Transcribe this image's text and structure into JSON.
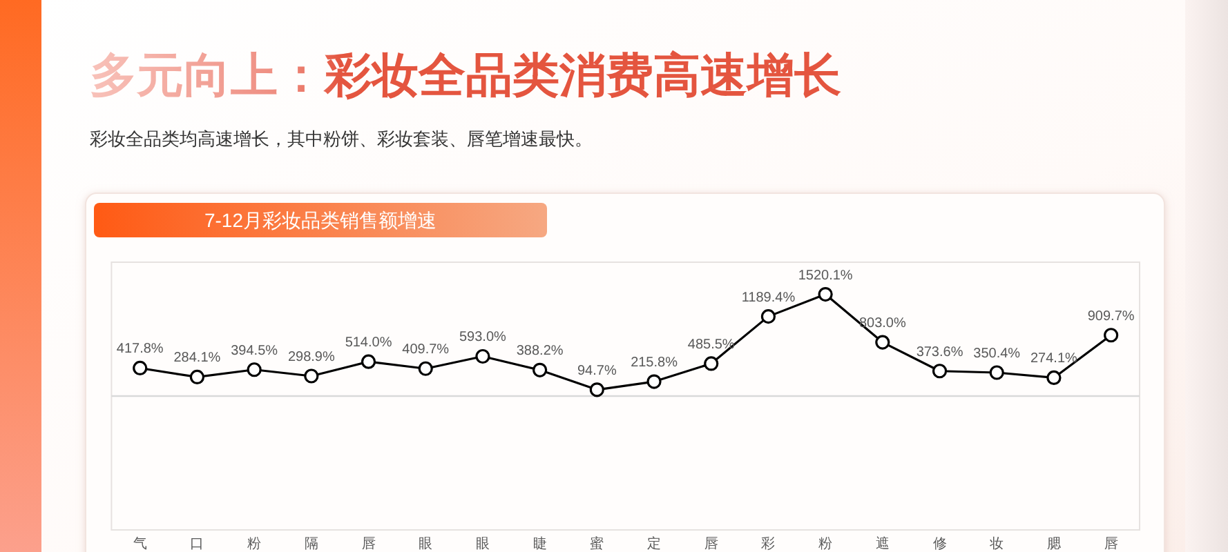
{
  "chart_data": {
    "type": "line",
    "title": "多元向上：彩妆全品类消费高速增长",
    "subtitle": "彩妆全品类均高速增长，其中粉饼、彩妆套装、唇笔增速最快。",
    "annotations": [
      "7-12月彩妆品类销售额增速"
    ],
    "categories": [
      "气",
      "口",
      "粉",
      "隔",
      "唇",
      "眼",
      "眼",
      "睫",
      "蜜",
      "定",
      "唇",
      "彩",
      "粉",
      "遮",
      "修",
      "妆",
      "腮",
      "唇"
    ],
    "series": [
      {
        "color": "#000000",
        "values": [
          417.8,
          284.1,
          394.5,
          298.9,
          514.0,
          409.7,
          593.0,
          388.2,
          94.7,
          215.8,
          485.5,
          1189.4,
          1520.1,
          803.0,
          373.6,
          350.4,
          274.1,
          909.7
        ],
        "value_labels": [
          "417.8%",
          "284.1%",
          "394.5%",
          "298.9%",
          "514.0%",
          "409.7%",
          "593.0%",
          "388.2%",
          "94.7%",
          "215.8%",
          "485.5%",
          "1189.4%",
          "1520.1%",
          "803.0%",
          "373.6%",
          "350.4%",
          "274.1%",
          "909.7%"
        ]
      }
    ],
    "ylim": [
      -2000,
      2000
    ],
    "ref_lines": [
      {
        "axis": "y",
        "value": 0,
        "color": "#d9d9d9"
      }
    ],
    "tick_labels": "x",
    "marker": "circle",
    "line_style": "solid"
  }
}
